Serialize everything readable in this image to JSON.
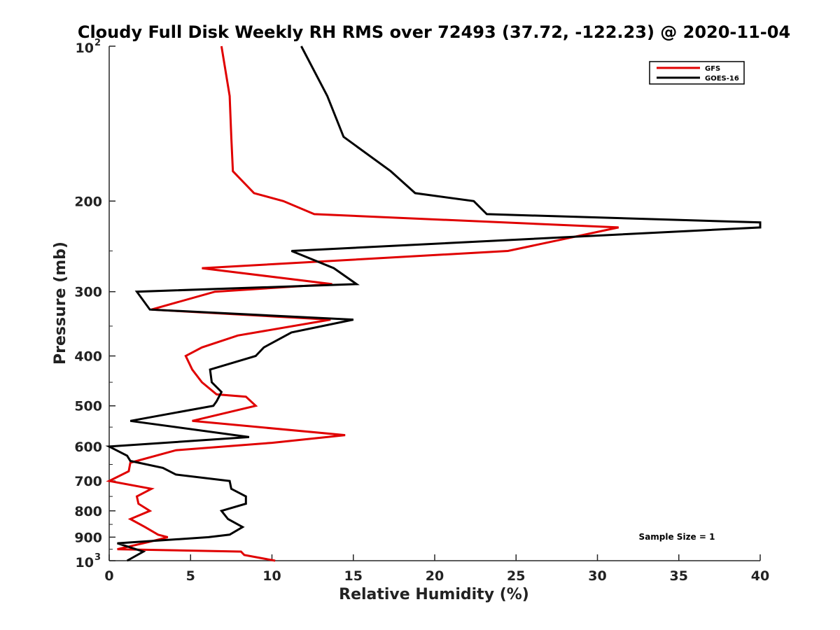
{
  "chart_data": {
    "type": "line",
    "title": "Cloudy Full Disk Weekly RH RMS over 72493 (37.72, -122.23) @ 2020-11-04",
    "xlabel": "Relative Humidity (%)",
    "ylabel": "Pressure (mb)",
    "xlim": [
      0,
      40
    ],
    "ylim": [
      1000,
      100
    ],
    "yscale": "log",
    "x_ticks": [
      "0",
      "5",
      "10",
      "15",
      "20",
      "25",
      "30",
      "35",
      "40"
    ],
    "y_ticks": [
      {
        "value": 100,
        "base": "10",
        "sup": "2"
      },
      {
        "value": 200,
        "label": "200"
      },
      {
        "value": 300,
        "label": "300"
      },
      {
        "value": 400,
        "label": "400"
      },
      {
        "value": 500,
        "label": "500"
      },
      {
        "value": 600,
        "label": "600"
      },
      {
        "value": 700,
        "label": "700"
      },
      {
        "value": 800,
        "label": "800"
      },
      {
        "value": 900,
        "label": "900"
      },
      {
        "value": 1000,
        "base": "10",
        "sup": "3"
      }
    ],
    "grid": false,
    "legend_position": "top-right",
    "annotation": "Sample Size = 1",
    "series": [
      {
        "name": "GFS",
        "color": "#e00000",
        "points": [
          [
            6.9,
            100
          ],
          [
            7.4,
            125
          ],
          [
            7.5,
            150
          ],
          [
            7.6,
            175
          ],
          [
            8.9,
            193
          ],
          [
            10.7,
            200
          ],
          [
            12.6,
            212
          ],
          [
            31.3,
            225
          ],
          [
            24.5,
            250
          ],
          [
            5.7,
            270
          ],
          [
            13.7,
            290
          ],
          [
            6.5,
            300
          ],
          [
            2.6,
            325
          ],
          [
            13.6,
            340
          ],
          [
            7.9,
            365
          ],
          [
            5.7,
            385
          ],
          [
            4.7,
            400
          ],
          [
            5.1,
            425
          ],
          [
            5.7,
            450
          ],
          [
            6.6,
            475
          ],
          [
            8.4,
            480
          ],
          [
            9.0,
            500
          ],
          [
            5.1,
            535
          ],
          [
            14.5,
            570
          ],
          [
            10.0,
            590
          ],
          [
            4.1,
            610
          ],
          [
            1.3,
            645
          ],
          [
            1.2,
            670
          ],
          [
            0.0,
            700
          ],
          [
            2.6,
            725
          ],
          [
            1.7,
            750
          ],
          [
            1.8,
            775
          ],
          [
            2.5,
            800
          ],
          [
            1.3,
            830
          ],
          [
            2.2,
            860
          ],
          [
            3.0,
            890
          ],
          [
            3.6,
            900
          ],
          [
            2.4,
            920
          ],
          [
            0.5,
            950
          ],
          [
            8.1,
            960
          ],
          [
            8.3,
            975
          ],
          [
            10.2,
            1000
          ]
        ]
      },
      {
        "name": "GOES-16",
        "color": "#000000",
        "points": [
          [
            11.8,
            100
          ],
          [
            13.4,
            125
          ],
          [
            14.4,
            150
          ],
          [
            17.3,
            175
          ],
          [
            18.8,
            193
          ],
          [
            22.4,
            200
          ],
          [
            23.2,
            212
          ],
          [
            40.0,
            220
          ],
          [
            40.0,
            225
          ],
          [
            11.2,
            250
          ],
          [
            13.8,
            270
          ],
          [
            15.2,
            290
          ],
          [
            1.7,
            300
          ],
          [
            2.5,
            325
          ],
          [
            15.0,
            340
          ],
          [
            11.2,
            360
          ],
          [
            9.5,
            385
          ],
          [
            9.0,
            400
          ],
          [
            6.2,
            425
          ],
          [
            6.3,
            450
          ],
          [
            6.9,
            470
          ],
          [
            6.6,
            490
          ],
          [
            6.4,
            500
          ],
          [
            1.3,
            535
          ],
          [
            8.6,
            575
          ],
          [
            0.0,
            600
          ],
          [
            1.1,
            625
          ],
          [
            1.3,
            640
          ],
          [
            3.3,
            660
          ],
          [
            4.1,
            680
          ],
          [
            7.4,
            700
          ],
          [
            7.5,
            725
          ],
          [
            8.4,
            750
          ],
          [
            8.4,
            775
          ],
          [
            6.9,
            800
          ],
          [
            7.3,
            830
          ],
          [
            8.2,
            860
          ],
          [
            7.4,
            890
          ],
          [
            6.1,
            900
          ],
          [
            0.5,
            925
          ],
          [
            2.1,
            960
          ],
          [
            1.1,
            1000
          ]
        ]
      }
    ]
  }
}
